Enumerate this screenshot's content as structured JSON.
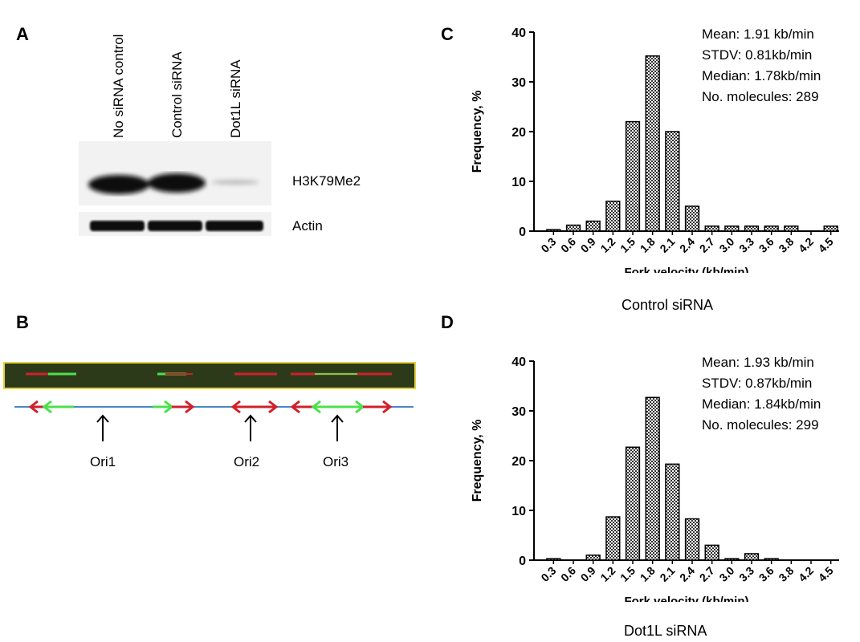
{
  "panels": {
    "a": {
      "letter": "A",
      "lanes": [
        "No siRNA control",
        "Control siRNA",
        "Dot1L siRNA"
      ],
      "blot_labels": [
        "H3K79Me2",
        "Actin"
      ]
    },
    "b": {
      "letter": "B",
      "origins": [
        "Ori1",
        "Ori2",
        "Ori3"
      ]
    },
    "c": {
      "letter": "C",
      "caption": "Control siRNA",
      "stats": [
        "Mean: 1.91 kb/min",
        "STDV: 0.81kb/min",
        "Median: 1.78kb/min",
        "No. molecules: 289"
      ]
    },
    "d": {
      "letter": "D",
      "caption": "Dot1L siRNA",
      "stats": [
        "Mean: 1.93 kb/min",
        "STDV: 0.87kb/min",
        "Median: 1.84kb/min",
        "No. molecules: 299"
      ]
    }
  },
  "colors": {
    "fiber_bg": "#2c3a1a",
    "fiber_border": "#e6d23c",
    "red": "#d0202a",
    "green": "#4ce04c",
    "axis_line": "#4a86c8"
  },
  "chart_data": [
    {
      "type": "bar",
      "xlabel": "Fork velocity (kb/min)",
      "ylabel": "Frequency, %",
      "ylim": [
        0,
        40
      ],
      "yticks": [
        0,
        10,
        20,
        30,
        40
      ],
      "categories": [
        "0.3",
        "0.6",
        "0.9",
        "1.2",
        "1.5",
        "1.8",
        "2.1",
        "2.4",
        "2.7",
        "3.0",
        "3.3",
        "3.6",
        "3.8",
        "4.2",
        "4.5"
      ],
      "values": [
        0.3,
        1.2,
        2.0,
        6.0,
        22.0,
        35.2,
        20.0,
        5.0,
        1.0,
        1.0,
        1.0,
        1.0,
        1.0,
        0,
        1.0
      ]
    },
    {
      "type": "bar",
      "xlabel": "Fork velocity (kb/min)",
      "ylabel": "Frequency, %",
      "ylim": [
        0,
        40
      ],
      "yticks": [
        0,
        10,
        20,
        30,
        40
      ],
      "categories": [
        "0.3",
        "0.6",
        "0.9",
        "1.2",
        "1.5",
        "1.8",
        "2.1",
        "2.4",
        "2.7",
        "3.0",
        "3.3",
        "3.6",
        "3.8",
        "4.2",
        "4.5"
      ],
      "values": [
        0.3,
        0,
        1.0,
        8.7,
        22.7,
        32.7,
        19.3,
        8.3,
        3.0,
        0.3,
        1.3,
        0.3,
        0,
        0,
        0
      ]
    }
  ]
}
